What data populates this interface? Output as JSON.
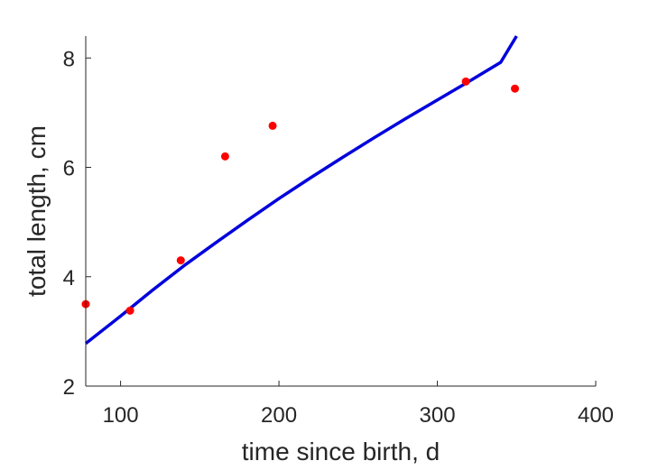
{
  "chart_data": {
    "type": "scatter",
    "title": "",
    "xlabel": "time since birth, d",
    "ylabel": "total length, cm",
    "xlim": [
      78,
      400
    ],
    "ylim": [
      2,
      8.4
    ],
    "xticks": [
      100,
      200,
      300,
      400
    ],
    "yticks": [
      2,
      4,
      6,
      8
    ],
    "grid": false,
    "colors": {
      "points": "#ff0000",
      "curve": "#0000dd",
      "axes": "#262626"
    },
    "series": [
      {
        "type": "scatter",
        "x": [
          78,
          106,
          138,
          166,
          196,
          318,
          349
        ],
        "y": [
          3.5,
          3.38,
          4.3,
          6.2,
          6.76,
          7.57,
          7.44
        ]
      },
      {
        "type": "line",
        "x": [
          78,
          100,
          120,
          140,
          160,
          180,
          200,
          220,
          240,
          260,
          280,
          300,
          320,
          340,
          350
        ],
        "y": [
          2.78,
          3.28,
          3.75,
          4.2,
          4.62,
          5.03,
          5.43,
          5.81,
          6.18,
          6.54,
          6.89,
          7.23,
          7.57,
          7.92,
          8.4
        ]
      }
    ]
  }
}
